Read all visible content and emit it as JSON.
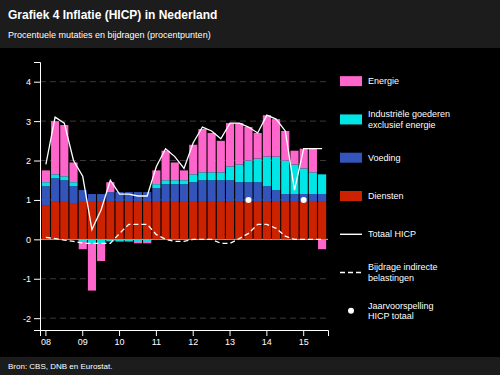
{
  "chart_data": {
    "type": "bar",
    "title": "Grafiek 4 Inflatie (HICP) in Nederland",
    "subtitle": "Procentuele mutaties en bijdragen (procentpunten)",
    "annotations": [
      "Bron: CBS, DNB en Eurostat."
    ],
    "stacked": true,
    "grid": true,
    "legend": "right",
    "ylim": [
      -2.3,
      4.5
    ],
    "yticks": [
      -2,
      -1,
      0,
      1,
      2,
      3,
      4
    ],
    "categories": [
      "08",
      null,
      null,
      null,
      "09",
      null,
      null,
      null,
      "10",
      null,
      null,
      null,
      "11",
      null,
      null,
      null,
      "12",
      null,
      null,
      null,
      "13",
      null,
      null,
      null,
      "14",
      null,
      null,
      null,
      "15",
      null,
      null
    ],
    "series": [
      {
        "name": "Diensten",
        "type": "bar",
        "color": "#cc2200",
        "values": [
          0.85,
          0.95,
          0.95,
          0.9,
          0.95,
          0.95,
          0.95,
          0.95,
          0.95,
          0.95,
          0.95,
          0.95,
          0.95,
          0.95,
          0.95,
          0.95,
          0.95,
          0.95,
          0.95,
          0.95,
          0.95,
          0.95,
          0.95,
          0.95,
          0.95,
          0.95,
          0.95,
          0.95,
          0.95,
          0.95,
          0.95
        ]
      },
      {
        "name": "Voeding",
        "type": "bar",
        "color": "#3355bb",
        "values": [
          0.5,
          0.6,
          0.55,
          0.45,
          0.3,
          0.2,
          0.2,
          0.25,
          0.25,
          0.25,
          0.25,
          0.25,
          0.35,
          0.45,
          0.45,
          0.45,
          0.5,
          0.55,
          0.55,
          0.55,
          0.55,
          0.5,
          0.5,
          0.5,
          0.4,
          0.3,
          0.2,
          0.2,
          0.2,
          0.2,
          0.2
        ]
      },
      {
        "name": "Industriële goederen\nexclusief energie",
        "type": "bar",
        "color": "#00e5e5",
        "values": [
          0.1,
          0.1,
          0.1,
          0.1,
          -0.05,
          -0.1,
          -0.1,
          -0.05,
          -0.05,
          -0.05,
          -0.05,
          -0.05,
          0.1,
          0.1,
          0.1,
          0.1,
          0.2,
          0.2,
          0.2,
          0.2,
          0.35,
          0.45,
          0.55,
          0.6,
          0.75,
          0.85,
          0.85,
          0.75,
          0.65,
          0.55,
          0.5
        ]
      },
      {
        "name": "Energie",
        "type": "bar",
        "color": "#ff66cc",
        "values": [
          0.3,
          1.35,
          1.3,
          0.5,
          -0.25,
          -1.3,
          -0.55,
          0.25,
          -0.05,
          -0.05,
          -0.1,
          -0.1,
          0.35,
          0.75,
          0.45,
          0.25,
          0.75,
          1.1,
          1.0,
          0.8,
          1.1,
          1.05,
          0.85,
          0.65,
          1.05,
          0.95,
          0.75,
          0.35,
          0.5,
          0.6,
          -0.25
        ]
      },
      {
        "name": "Totaal HICP",
        "type": "line",
        "color": "#ffffff",
        "line_style": "solid",
        "values": [
          1.9,
          3.1,
          2.95,
          2.0,
          1.6,
          0.25,
          0.75,
          1.5,
          1.15,
          1.15,
          1.1,
          1.1,
          1.85,
          2.3,
          2.1,
          1.8,
          2.45,
          2.85,
          2.75,
          2.55,
          2.95,
          2.95,
          2.85,
          2.7,
          3.15,
          3.05,
          2.75,
          1.25,
          2.3,
          2.3,
          2.3
        ]
      },
      {
        "name": "Bijdrage indirecte\nbelastingen",
        "type": "line",
        "color": "#ffffff",
        "line_style": "dashed",
        "values": [
          0.05,
          0.02,
          -0.02,
          -0.05,
          -0.1,
          -0.1,
          -0.1,
          -0.1,
          0.15,
          0.38,
          0.38,
          0.38,
          0.12,
          0.0,
          -0.05,
          -0.05,
          0.0,
          0.0,
          0.0,
          -0.1,
          -0.1,
          0.02,
          0.15,
          0.38,
          0.38,
          0.28,
          0.08,
          0.0,
          0.0,
          0.0,
          0.0
        ]
      },
      {
        "name": "Jaarvoorspelling\nHICP totaal",
        "type": "scatter",
        "color": "#ffffff",
        "marker": "circle",
        "values": [
          null,
          null,
          null,
          null,
          null,
          null,
          null,
          null,
          null,
          null,
          null,
          null,
          null,
          null,
          null,
          null,
          null,
          null,
          null,
          null,
          null,
          null,
          1.0,
          null,
          null,
          null,
          null,
          null,
          1.0,
          null,
          null
        ]
      }
    ]
  }
}
